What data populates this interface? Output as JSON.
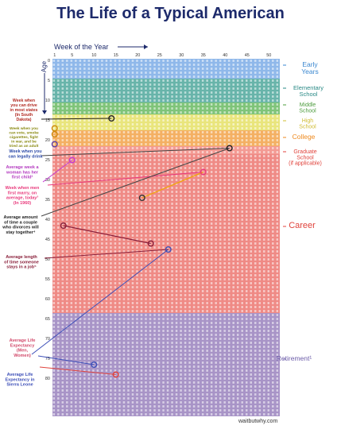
{
  "title": "The Life of a Typical American",
  "credit": "waitbutwhy.com",
  "chart_data": {
    "type": "heatmap",
    "x_label": "Week of the Year",
    "y_label": "Age",
    "x_ticks": [
      1,
      5,
      10,
      15,
      20,
      25,
      30,
      35,
      40,
      45,
      50
    ],
    "y_ticks": [
      0,
      5,
      10,
      15,
      20,
      25,
      30,
      35,
      40,
      45,
      50,
      55,
      60,
      65,
      70,
      75,
      80
    ],
    "weeks_per_year": 52,
    "years": 90,
    "grid": true,
    "stages": [
      {
        "name": "Early Years",
        "from_age": 0,
        "to_age": 5,
        "color": "#8fb8ea",
        "label_color": "#3a87d0"
      },
      {
        "name": "Elementary School",
        "from_age": 5,
        "to_age": 11,
        "color": "#68b4aa",
        "label_color": "#2a8a86"
      },
      {
        "name": "Middle School",
        "from_age": 11,
        "to_age": 14,
        "color": "#7fc479",
        "label_color": "#4d9c3e"
      },
      {
        "name": "High School",
        "from_age": 14,
        "to_age": 18,
        "color": "#e9e57c",
        "label_color": "#d0bc33"
      },
      {
        "name": "College",
        "from_age": 18,
        "to_age": 22,
        "color": "#f4b063",
        "label_color": "#ee8a1f"
      },
      {
        "name": "Graduate School (if applicable)",
        "from_age": 22,
        "to_age": 24,
        "color": "#f39a93",
        "label_color": "#e0433c"
      },
      {
        "name": "Career",
        "from_age": 24,
        "to_age": 64,
        "color": "#ef8a85",
        "label_color": "#e0433c"
      },
      {
        "name": "Retirement¹",
        "from_age": 64,
        "to_age": 90,
        "color": "#a894c7",
        "label_color": "#6b5ba8"
      }
    ],
    "annotations": [
      {
        "text": "Week when you can drive in most states (in South Dakota)",
        "age": 14.5,
        "week": 14,
        "color": "#b22a22"
      },
      {
        "text": "Week when you can vote, smoke cigarettes, fight in war, and be tried as an adult",
        "age": 18,
        "week": 1,
        "color": "#8a8a12"
      },
      {
        "text": "Week when you can legally drink",
        "age": 21,
        "week": 1,
        "color": "#2c4aa8"
      },
      {
        "text": "Average week a woman has her first child²",
        "age": 25.5,
        "week": 4,
        "color": "#b43bc0"
      },
      {
        "text": "Week when men first marry, on average, today³ (In 1960)",
        "age": 29,
        "week": 35,
        "color": "#e83a7c"
      },
      {
        "text": "Average amount of time a couple who divorces will stay together⁴",
        "age": 33,
        "week": 21,
        "color": "#222222"
      },
      {
        "text": "Average length of time someone stays in a job⁵",
        "age": 41.5,
        "week": 3,
        "color": "#8a1f3a"
      }
    ],
    "markers": [
      {
        "age": 14.5,
        "week": 14,
        "color": "#222222"
      },
      {
        "age": 17,
        "week": 1,
        "color": "#d08a10"
      },
      {
        "age": 18.5,
        "week": 1,
        "color": "#d08a10"
      },
      {
        "age": 21,
        "week": 1,
        "color": "#5b3fa8"
      },
      {
        "age": 25,
        "week": 5,
        "color": "#c43ad0"
      },
      {
        "age": 22,
        "week": 41,
        "color": "#222222"
      },
      {
        "age": 28,
        "week": 35,
        "color": "#e83a7c"
      },
      {
        "age": 34.5,
        "week": 21,
        "color": "#333333"
      },
      {
        "age": 41.5,
        "week": 3,
        "color": "#8a1f3a"
      },
      {
        "age": 46,
        "week": 23,
        "color": "#8a1f3a"
      },
      {
        "age": 47.5,
        "week": 27,
        "color": "#3d4fb8"
      },
      {
        "age": 76.5,
        "week": 10,
        "color": "#3d4fb8"
      },
      {
        "age": 79,
        "week": 15,
        "color": "#e0433c"
      }
    ],
    "callouts": [
      {
        "text": "Average Life Expectancy (Men, Women)",
        "color": "#d24a6b"
      },
      {
        "text": "Average Life Expectancy in Sierra Leone",
        "color": "#3d4fb8"
      }
    ]
  }
}
